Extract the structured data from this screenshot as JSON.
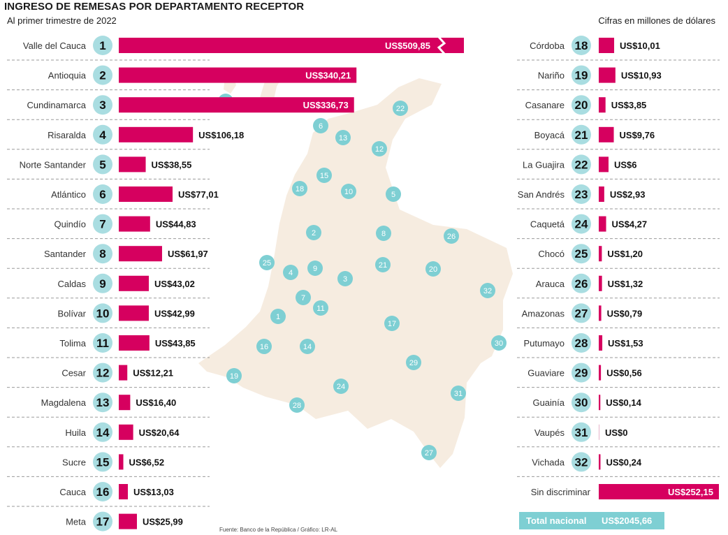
{
  "chart_data": {
    "type": "bar",
    "title": "INGRESO DE REMESAS POR DEPARTAMENTO RECEPTOR",
    "subtitle": "Al primer trimestre de 2022",
    "units_note": "Cifras en millones de dólares",
    "source": "Fuente: Banco de la República / Gráfico: LR-AL",
    "bar_color": "#d6005f",
    "map_color": "#f6ece0",
    "badge_color": "#a9dde1",
    "marker_color": "#7ecfd3",
    "items": [
      {
        "rank": "1",
        "name": "Valle del Cauca",
        "value": 509.85,
        "label": "US$509,85"
      },
      {
        "rank": "2",
        "name": "Antioquia",
        "value": 340.21,
        "label": "US$340,21"
      },
      {
        "rank": "3",
        "name": "Cundinamarca",
        "value": 336.73,
        "label": "US$336,73"
      },
      {
        "rank": "4",
        "name": "Risaralda",
        "value": 106.18,
        "label": "US$106,18"
      },
      {
        "rank": "5",
        "name": "Norte Santander",
        "value": 38.55,
        "label": "US$38,55"
      },
      {
        "rank": "6",
        "name": "Atlántico",
        "value": 77.01,
        "label": "US$77,01"
      },
      {
        "rank": "7",
        "name": "Quindío",
        "value": 44.83,
        "label": "US$44,83"
      },
      {
        "rank": "8",
        "name": "Santander",
        "value": 61.97,
        "label": "US$61,97"
      },
      {
        "rank": "9",
        "name": "Caldas",
        "value": 43.02,
        "label": "US$43,02"
      },
      {
        "rank": "10",
        "name": "Bolívar",
        "value": 42.99,
        "label": "US$42,99"
      },
      {
        "rank": "11",
        "name": "Tolima",
        "value": 43.85,
        "label": "US$43,85"
      },
      {
        "rank": "12",
        "name": "Cesar",
        "value": 12.21,
        "label": "US$12,21"
      },
      {
        "rank": "13",
        "name": "Magdalena",
        "value": 16.4,
        "label": "US$16,40"
      },
      {
        "rank": "14",
        "name": "Huila",
        "value": 20.64,
        "label": "US$20,64"
      },
      {
        "rank": "15",
        "name": "Sucre",
        "value": 6.52,
        "label": "US$6,52"
      },
      {
        "rank": "16",
        "name": "Cauca",
        "value": 13.03,
        "label": "US$13,03"
      },
      {
        "rank": "17",
        "name": "Meta",
        "value": 25.99,
        "label": "US$25,99"
      },
      {
        "rank": "18",
        "name": "Córdoba",
        "value": 10.01,
        "label": "US$10,01"
      },
      {
        "rank": "19",
        "name": "Nariño",
        "value": 10.93,
        "label": "US$10,93"
      },
      {
        "rank": "20",
        "name": "Casanare",
        "value": 3.85,
        "label": "US$3,85"
      },
      {
        "rank": "21",
        "name": "Boyacá",
        "value": 9.76,
        "label": "US$9,76"
      },
      {
        "rank": "22",
        "name": "La Guajira",
        "value": 6,
        "label": "US$6"
      },
      {
        "rank": "23",
        "name": "San Andrés",
        "value": 2.93,
        "label": "US$2,93"
      },
      {
        "rank": "24",
        "name": "Caquetá",
        "value": 4.27,
        "label": "US$4,27"
      },
      {
        "rank": "25",
        "name": "Chocó",
        "value": 1.2,
        "label": "US$1,20"
      },
      {
        "rank": "26",
        "name": "Arauca",
        "value": 1.32,
        "label": "US$1,32"
      },
      {
        "rank": "27",
        "name": "Amazonas",
        "value": 0.79,
        "label": "US$0,79"
      },
      {
        "rank": "28",
        "name": "Putumayo",
        "value": 1.53,
        "label": "US$1,53"
      },
      {
        "rank": "29",
        "name": "Guaviare",
        "value": 0.56,
        "label": "US$0,56"
      },
      {
        "rank": "30",
        "name": "Guainía",
        "value": 0.14,
        "label": "US$0,14"
      },
      {
        "rank": "31",
        "name": "Vaupés",
        "value": 0,
        "label": "US$0"
      },
      {
        "rank": "32",
        "name": "Vichada",
        "value": 0.24,
        "label": "US$0,24"
      },
      {
        "rank": "",
        "name": "Sin discriminar",
        "value": 252.15,
        "label": "US$252,15"
      }
    ],
    "total": {
      "label": "Total nacional",
      "value": 2045.66,
      "value_label": "US$2045,66"
    }
  }
}
